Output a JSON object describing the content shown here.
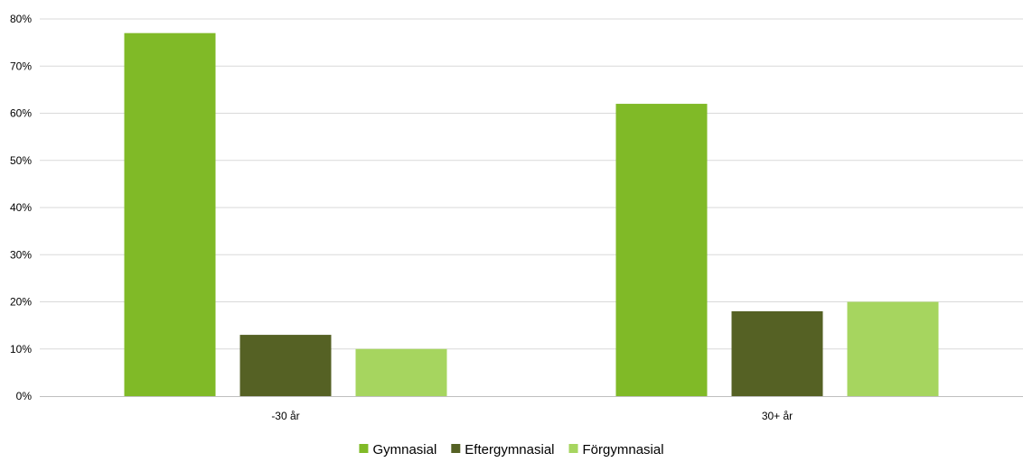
{
  "chart_data": {
    "type": "bar",
    "categories": [
      "-30 år",
      "30+ år"
    ],
    "series": [
      {
        "name": "Gymnasial",
        "color": "#80BA27",
        "values": [
          77,
          62
        ]
      },
      {
        "name": "Eftergymnasial",
        "color": "#556124",
        "values": [
          13,
          18
        ]
      },
      {
        "name": "Förgymnasial",
        "color": "#A6D55F",
        "values": [
          10,
          20
        ]
      }
    ],
    "ylim": [
      0,
      80
    ],
    "yticks": [
      0,
      10,
      20,
      30,
      40,
      50,
      60,
      70,
      80
    ],
    "ytick_labels": [
      "0%",
      "10%",
      "20%",
      "30%",
      "40%",
      "50%",
      "60%",
      "70%",
      "80%"
    ],
    "grid": true,
    "legend_position": "bottom"
  }
}
